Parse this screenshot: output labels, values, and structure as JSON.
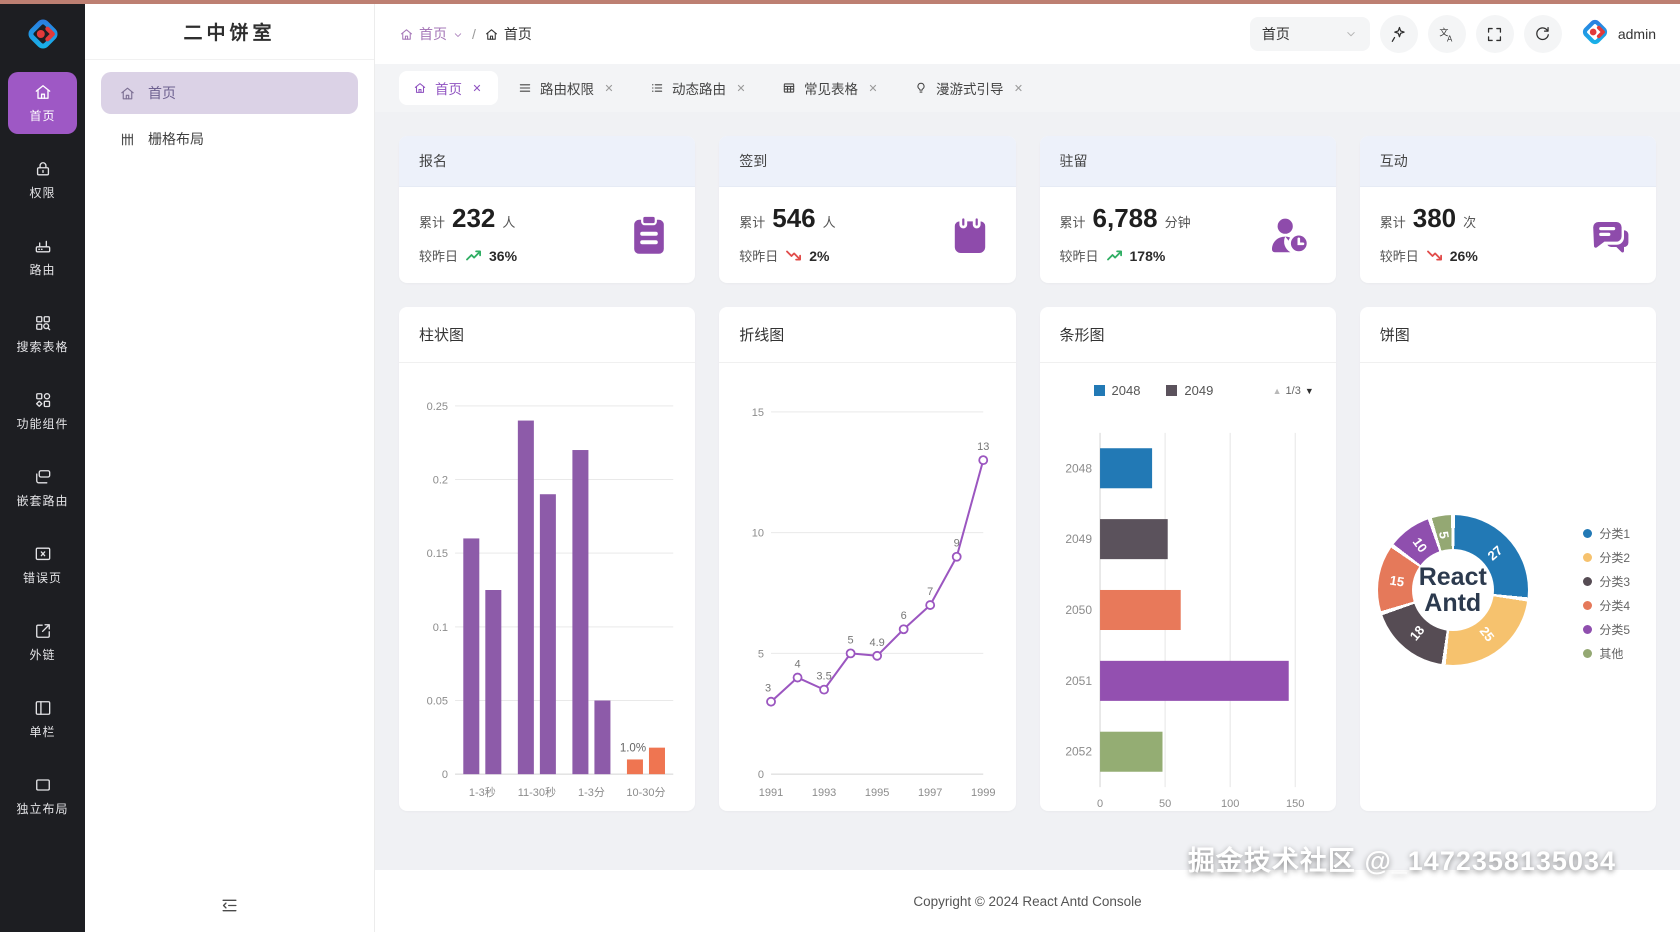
{
  "app": {
    "footer": "Copyright © 2024 React Antd Console",
    "watermark": "掘金技术社区 @_1472358135034",
    "accent_color": "#9e58c5",
    "progress_bar_color": "#bd7f72"
  },
  "sidebar": {
    "items": [
      {
        "label": "首页",
        "icon": "home-icon",
        "active": true
      },
      {
        "label": "权限",
        "icon": "lock-icon",
        "active": false
      },
      {
        "label": "路由",
        "icon": "router-icon",
        "active": false
      },
      {
        "label": "搜索表格",
        "icon": "table-search-icon",
        "active": false
      },
      {
        "label": "功能组件",
        "icon": "components-icon",
        "active": false
      },
      {
        "label": "嵌套路由",
        "icon": "nested-route-icon",
        "active": false
      },
      {
        "label": "错误页",
        "icon": "error-page-icon",
        "active": false
      },
      {
        "label": "外链",
        "icon": "external-link-icon",
        "active": false
      },
      {
        "label": "单栏",
        "icon": "single-column-icon",
        "active": false
      },
      {
        "label": "独立布局",
        "icon": "standalone-layout-icon",
        "active": false
      }
    ]
  },
  "submenu": {
    "title": "二中饼室",
    "items": [
      {
        "label": "首页",
        "icon": "home-icon",
        "active": true
      },
      {
        "label": "栅格布局",
        "icon": "grid-icon",
        "active": false
      }
    ]
  },
  "breadcrumb": {
    "separator": "/",
    "items": [
      {
        "label": "首页",
        "icon": "home-icon",
        "dropdown": true
      },
      {
        "label": "首页",
        "icon": "home-icon",
        "dropdown": false
      }
    ]
  },
  "header": {
    "page_select": {
      "value": "首页"
    },
    "actions": [
      {
        "icon": "sparkle-icon"
      },
      {
        "icon": "translate-icon"
      },
      {
        "icon": "fullscreen-icon"
      },
      {
        "icon": "refresh-icon"
      }
    ],
    "user": {
      "name": "admin",
      "avatar": "logo-icon"
    }
  },
  "tabs": [
    {
      "label": "首页",
      "icon": "home-icon",
      "active": true
    },
    {
      "label": "路由权限",
      "icon": "menu-icon",
      "active": false
    },
    {
      "label": "动态路由",
      "icon": "list-icon",
      "active": false
    },
    {
      "label": "常见表格",
      "icon": "table-icon",
      "active": false
    },
    {
      "label": "漫游式引导",
      "icon": "bulb-icon",
      "active": false
    }
  ],
  "stats": [
    {
      "title": "报名",
      "prefix": "累计",
      "value": "232",
      "unit": "人",
      "compare_label": "较昨日",
      "trend": "up",
      "percent": "36%",
      "icon": "clipboard-icon"
    },
    {
      "title": "签到",
      "prefix": "累计",
      "value": "546",
      "unit": "人",
      "compare_label": "较昨日",
      "trend": "down",
      "percent": "2%",
      "icon": "calendar-icon"
    },
    {
      "title": "驻留",
      "prefix": "累计",
      "value": "6,788",
      "unit": "分钟",
      "compare_label": "较昨日",
      "trend": "up",
      "percent": "178%",
      "icon": "user-clock-icon"
    },
    {
      "title": "互动",
      "prefix": "累计",
      "value": "380",
      "unit": "次",
      "compare_label": "较昨日",
      "trend": "down",
      "percent": "26%",
      "icon": "chat-icon"
    }
  ],
  "chart_data": [
    {
      "type": "bar",
      "title": "柱状图",
      "categories": [
        "1-3秒",
        "11-30秒",
        "1-3分",
        "10-30分"
      ],
      "series": [
        {
          "group": "1-3秒",
          "values": [
            0.16,
            0.125
          ]
        },
        {
          "group": "11-30秒",
          "values": [
            0.24,
            0.19
          ]
        },
        {
          "group": "1-3分",
          "values": [
            0.22,
            0.05
          ]
        },
        {
          "group": "10-30分",
          "values": [
            0.01,
            0.018
          ]
        }
      ],
      "annotation": {
        "text": "1.0%",
        "group_index": 3,
        "bar_index": 0
      },
      "ylim": [
        0,
        0.25
      ],
      "yticks": [
        "0",
        "0.05",
        "0.1",
        "0.15",
        "0.2",
        "0.25"
      ],
      "bar_color": "#8d5ba9",
      "highlight_color": "#ef7551",
      "grid": true
    },
    {
      "type": "line",
      "title": "折线图",
      "x": [
        1991,
        1992,
        1993,
        1994,
        1995,
        1996,
        1997,
        1998,
        1999
      ],
      "values": [
        3,
        4,
        3.5,
        5,
        4.9,
        6,
        7,
        9,
        13
      ],
      "point_labels": [
        "3",
        "4",
        "3.5",
        "5",
        "4.9",
        "6",
        "7",
        "9",
        "13"
      ],
      "xticks": [
        "1991",
        "1993",
        "1995",
        "1997",
        "1999"
      ],
      "yticks": [
        "0",
        "5",
        "10",
        "15"
      ],
      "ylim": [
        0,
        15
      ],
      "color": "#9b56c0",
      "grid": true
    },
    {
      "type": "bar-horizontal",
      "title": "条形图",
      "legend": [
        {
          "label": "2048",
          "color": "#2279b5"
        },
        {
          "label": "2049",
          "color": "#5b525c"
        }
      ],
      "legend_pager": "1/3",
      "categories": [
        "2048",
        "2049",
        "2050",
        "2051",
        "2052"
      ],
      "values": [
        40,
        52,
        62,
        145,
        48
      ],
      "colors": [
        "#2279b5",
        "#5b525c",
        "#e8795a",
        "#9350b0",
        "#94ad73"
      ],
      "xticks": [
        "0",
        "50",
        "100",
        "150"
      ],
      "xtick_values": [
        0,
        50,
        100,
        150
      ],
      "xlim": [
        0,
        160
      ],
      "grid": true
    },
    {
      "type": "pie",
      "title": "饼图",
      "center_text_line1": "React",
      "center_text_line2": "Antd",
      "slices": [
        {
          "label": "分类1",
          "value": 27,
          "color": "#2279b5"
        },
        {
          "label": "分类2",
          "value": 25,
          "color": "#f6c26e"
        },
        {
          "label": "分类3",
          "value": 18,
          "color": "#564c54"
        },
        {
          "label": "分类4",
          "value": 15,
          "color": "#e5795a"
        },
        {
          "label": "分类5",
          "value": 10,
          "color": "#8f4fae"
        },
        {
          "label": "其他",
          "value": 5,
          "color": "#94a873"
        }
      ],
      "legend_position": "right"
    }
  ]
}
